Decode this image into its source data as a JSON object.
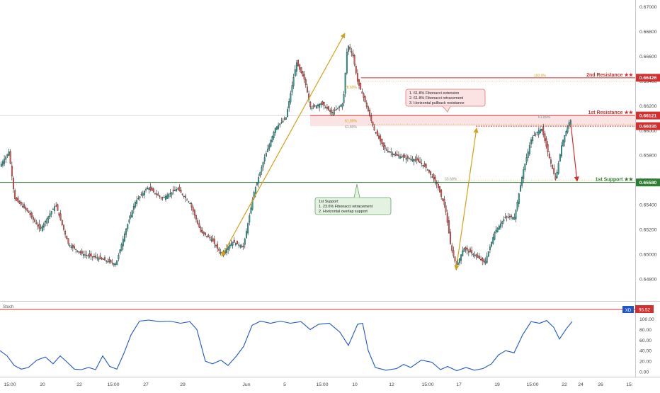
{
  "chart_data": [
    {
      "type": "candlestick",
      "title": "",
      "x_ticks": [
        "15:00",
        "20",
        "22",
        "15:00",
        "27",
        "29",
        "Jun",
        "5",
        "15:00",
        "10",
        "12",
        "15:00",
        "17",
        "19",
        "15:00",
        "22",
        "24",
        "26",
        "15:"
      ],
      "y_ticks": [
        "0.67000",
        "0.66800",
        "0.66600",
        "0.66400",
        "0.66200",
        "0.66000",
        "0.65800",
        "0.65600",
        "0.65400",
        "0.65200",
        "0.65000",
        "0.64800"
      ],
      "ylim": [
        0.6468,
        0.671
      ],
      "grid": false,
      "price_labels": [
        {
          "value": "0.66426",
          "kind": "resistance"
        },
        {
          "value": "0.66121",
          "kind": "resistance"
        },
        {
          "value": "0.66035",
          "kind": "resistance"
        },
        {
          "value": "0.65580",
          "kind": "support"
        }
      ],
      "levels": [
        {
          "name": "2nd Resistance ★★",
          "value": 0.66426
        },
        {
          "name": "1st Resistance ★★",
          "value": 0.66121
        },
        {
          "name": "1st Support ★★",
          "value": 0.6558
        }
      ],
      "fib_labels": [
        "100.0%",
        "78.60%",
        "61.80%",
        "61.80%",
        "61.80%",
        "23.60%"
      ],
      "annotations": [
        {
          "lines": [
            "1. 61.8% Fibonacci extension",
            "2. 61.8% Fibonacci retracement",
            "3. Horizontal pullback resistance"
          ]
        },
        {
          "lines": [
            "1st Support",
            "1. 23.6% Fibonacci retracement",
            "2. Horizontal overlap support"
          ]
        }
      ],
      "colors": {
        "up": "#26a69a",
        "down": "#ef5350",
        "outline": "#1b1b1b",
        "resistance": "#d32f2f",
        "support": "#2e7d32",
        "fib": "#d4a017"
      }
    },
    {
      "type": "line",
      "title": "Stoch",
      "y_ticks": [
        "100.00",
        "80.00",
        "60.00",
        "40.00",
        "20.00",
        "0.00"
      ],
      "ylim": [
        -8,
        110
      ],
      "series": [
        {
          "name": "XD",
          "last_value": "95.52"
        }
      ],
      "level": 95.52,
      "colors": {
        "line": "#1e56c8",
        "level": "#d32f2f",
        "label_bg": "#1e56c8"
      }
    }
  ]
}
